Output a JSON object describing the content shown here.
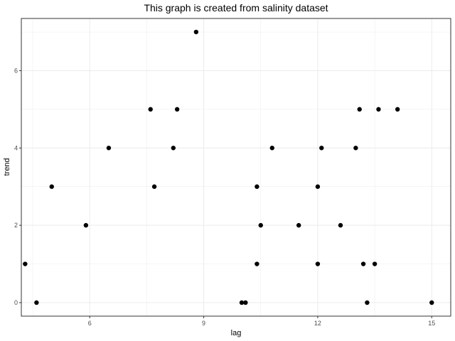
{
  "chart_data": {
    "type": "scatter",
    "title": "This graph is created from salinity dataset",
    "xlabel": "lag",
    "ylabel": "trend",
    "xlim": [
      4.2,
      15.5
    ],
    "ylim": [
      -0.35,
      7.35
    ],
    "x_ticks": [
      6,
      9,
      12,
      15
    ],
    "y_ticks": [
      0,
      2,
      4,
      6
    ],
    "x_tick_labels": [
      "6",
      "9",
      "12",
      "15"
    ],
    "y_tick_labels": [
      "0",
      "2",
      "4",
      "6"
    ],
    "grid": true,
    "legend": "none",
    "colors": {
      "point": "#000000",
      "grid": "#ebebeb",
      "panel_border": "#333333",
      "background": "#ffffff"
    },
    "points": [
      {
        "x": 4.3,
        "y": 1
      },
      {
        "x": 4.6,
        "y": 0
      },
      {
        "x": 5.0,
        "y": 3
      },
      {
        "x": 5.9,
        "y": 2
      },
      {
        "x": 6.5,
        "y": 4
      },
      {
        "x": 7.6,
        "y": 5
      },
      {
        "x": 7.7,
        "y": 3
      },
      {
        "x": 8.2,
        "y": 4
      },
      {
        "x": 8.3,
        "y": 5
      },
      {
        "x": 8.8,
        "y": 7
      },
      {
        "x": 10.0,
        "y": 0
      },
      {
        "x": 10.1,
        "y": 0
      },
      {
        "x": 10.4,
        "y": 3
      },
      {
        "x": 10.4,
        "y": 1
      },
      {
        "x": 10.5,
        "y": 2
      },
      {
        "x": 10.8,
        "y": 4
      },
      {
        "x": 11.5,
        "y": 2
      },
      {
        "x": 12.0,
        "y": 3
      },
      {
        "x": 12.0,
        "y": 1
      },
      {
        "x": 12.1,
        "y": 4
      },
      {
        "x": 12.6,
        "y": 2
      },
      {
        "x": 13.0,
        "y": 4
      },
      {
        "x": 13.1,
        "y": 5
      },
      {
        "x": 13.2,
        "y": 1
      },
      {
        "x": 13.3,
        "y": 0
      },
      {
        "x": 13.5,
        "y": 1
      },
      {
        "x": 13.6,
        "y": 5
      },
      {
        "x": 14.1,
        "y": 5
      },
      {
        "x": 15.0,
        "y": 0
      }
    ]
  }
}
